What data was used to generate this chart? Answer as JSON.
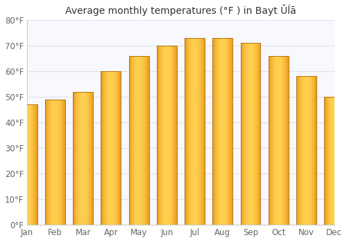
{
  "title": "Average monthly temperatures (°F ) in Bayt Ŭĺā",
  "months": [
    "Jan",
    "Feb",
    "Mar",
    "Apr",
    "May",
    "Jun",
    "Jul",
    "Aug",
    "Sep",
    "Oct",
    "Nov",
    "Dec"
  ],
  "values": [
    47,
    49,
    52,
    60,
    66,
    70,
    73,
    73,
    71,
    66,
    58,
    50
  ],
  "bar_color_center": "#FFAA00",
  "bar_color_edge": "#E08000",
  "bar_color_bright": "#FFD050",
  "ylim": [
    0,
    80
  ],
  "yticks": [
    0,
    10,
    20,
    30,
    40,
    50,
    60,
    70,
    80
  ],
  "ylabel_suffix": "°F",
  "background_color": "#ffffff",
  "plot_bg_color": "#f8f8ff",
  "grid_color": "#e0e0e8",
  "title_fontsize": 10,
  "tick_fontsize": 8.5,
  "bar_width": 0.72
}
